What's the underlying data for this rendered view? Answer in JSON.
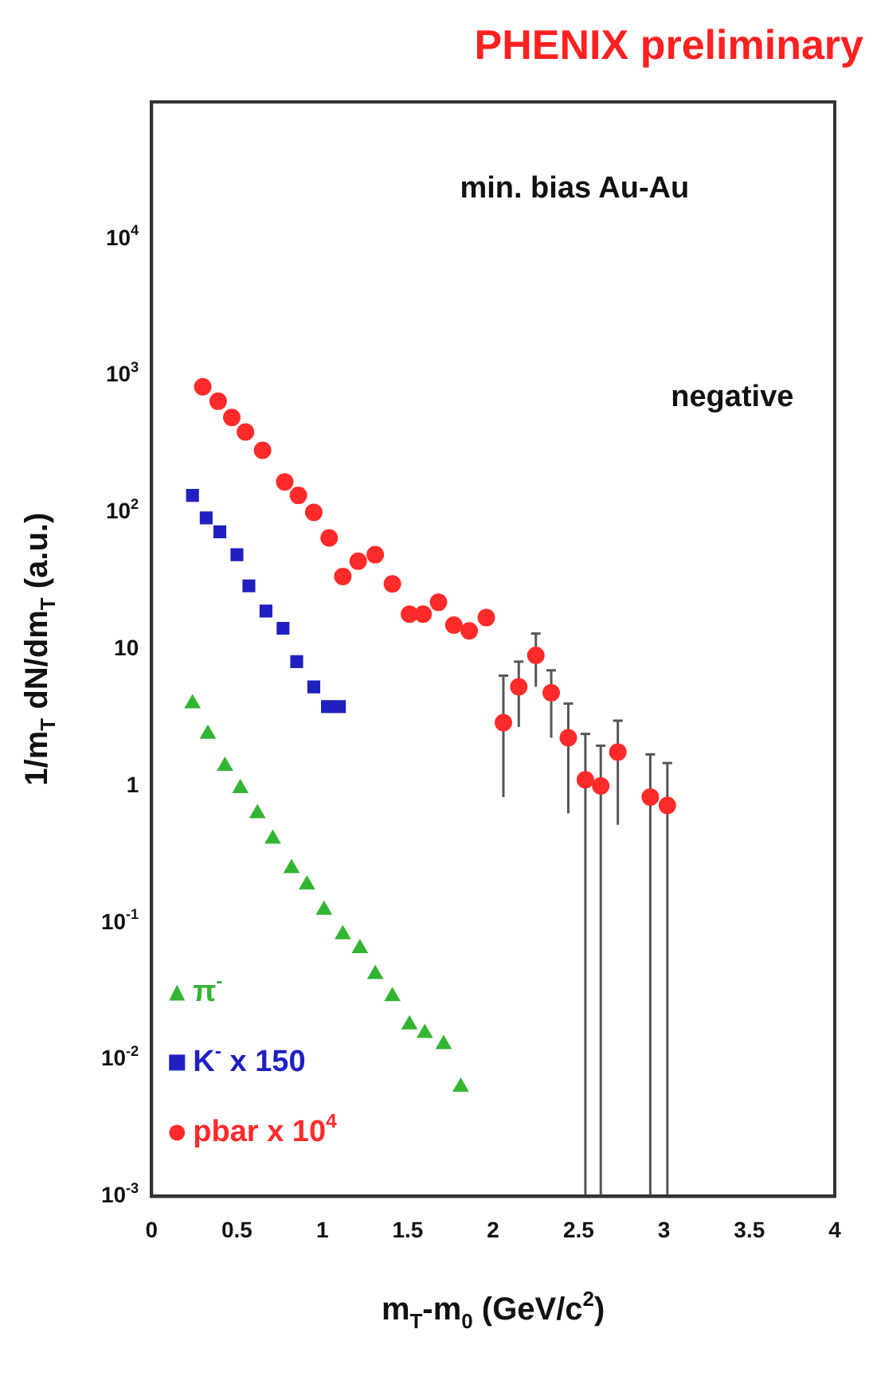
{
  "chart_data": {
    "type": "scatter",
    "title": "PHENIX preliminary",
    "xlabel": "m$_{T}$-m$_{0}$ (GeV/c$^{2}$)",
    "ylabel": "1/m$_{T}$ dN/dm$_{T}$ (a.u.)",
    "annotations": [
      "min. bias Au-Au",
      "negative"
    ],
    "xlim": [
      0,
      4
    ],
    "xticks": [
      0,
      0.5,
      1,
      1.5,
      2,
      2.5,
      3,
      3.5,
      4
    ],
    "ylim": [
      0.001,
      100000
    ],
    "log": "y",
    "yticks": [
      {
        "value": 0.001,
        "label": "10$^{-3}$"
      },
      {
        "value": 0.01,
        "label": "10$^{-2}$"
      },
      {
        "value": 0.1,
        "label": "10$^{-1}$"
      },
      1,
      10,
      {
        "value": 100,
        "label": "10$^{2}$"
      },
      {
        "value": 1000,
        "label": "10$^{3}$"
      },
      {
        "value": 10000,
        "label": "10$^{4}$"
      }
    ],
    "grid": false,
    "legend": "bottom left",
    "series": [
      {
        "name": "π$^{-}$",
        "color": "#33b533",
        "marker": "triangle",
        "x": [
          0.24,
          0.33,
          0.43,
          0.52,
          0.62,
          0.71,
          0.82,
          0.91,
          1.01,
          1.12,
          1.22,
          1.31,
          1.41,
          1.51,
          1.6,
          1.71,
          1.81
        ],
        "values": [
          4.0,
          2.4,
          1.4,
          0.96,
          0.63,
          0.41,
          0.25,
          0.19,
          0.124,
          0.082,
          0.065,
          0.042,
          0.029,
          0.018,
          0.0156,
          0.0129,
          0.0063
        ]
      },
      {
        "name": "K$^{-}$ x 150",
        "color": "#2020c0",
        "marker": "square",
        "x": [
          0.24,
          0.32,
          0.4,
          0.5,
          0.57,
          0.67,
          0.77,
          0.85,
          0.95,
          1.03,
          1.1
        ],
        "values": [
          133,
          91,
          72,
          49,
          29,
          19,
          14.2,
          8.1,
          5.3,
          3.8,
          3.8
        ]
      },
      {
        "name": "pbar x 10$^{4}$",
        "color": "#ff2a2a",
        "marker": "circle",
        "x": [
          0.3,
          0.39,
          0.47,
          0.55,
          0.65,
          0.78,
          0.86,
          0.95,
          1.04,
          1.12,
          1.21,
          1.31,
          1.41,
          1.51,
          1.59,
          1.68,
          1.77,
          1.86,
          1.96,
          2.06,
          2.15,
          2.25,
          2.34,
          2.44,
          2.54,
          2.63,
          2.73,
          2.92,
          3.02
        ],
        "values": [
          828,
          649,
          494,
          387,
          284,
          167,
          133,
          100,
          65,
          34,
          44,
          49,
          30,
          18,
          18,
          22,
          15,
          13.6,
          17,
          2.9,
          5.3,
          9.0,
          4.8,
          2.25,
          1.11,
          1.0,
          1.77,
          0.83,
          0.72
        ],
        "errors": [
          null,
          null,
          null,
          null,
          null,
          null,
          null,
          null,
          null,
          null,
          null,
          null,
          null,
          null,
          null,
          null,
          null,
          null,
          null,
          [
            0.83,
            6.4
          ],
          [
            2.7,
            8.1
          ],
          [
            5.3,
            13
          ],
          [
            2.25,
            7.0
          ],
          [
            0.63,
            4.0
          ],
          [
            0.001,
            2.4
          ],
          [
            0.001,
            1.97
          ],
          [
            0.52,
            3.0
          ],
          [
            0.001,
            1.7
          ],
          [
            0.001,
            1.47
          ]
        ]
      }
    ]
  }
}
